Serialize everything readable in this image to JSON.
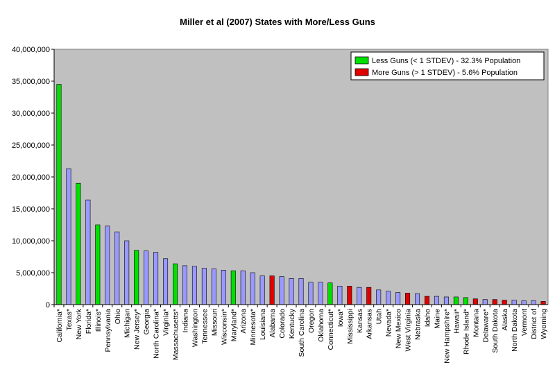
{
  "chart_data": {
    "type": "bar",
    "title": "Miller et al (2007) States with More/Less Guns",
    "xlabel": "",
    "ylabel": "",
    "ylim": [
      0,
      40000000
    ],
    "yticks": [
      0,
      5000000,
      10000000,
      15000000,
      20000000,
      25000000,
      30000000,
      35000000,
      40000000
    ],
    "ytick_labels": [
      "0",
      "5,000,000",
      "10,000,000",
      "15,000,000",
      "20,000,000",
      "25,000,000",
      "30,000,000",
      "35,000,000",
      "40,000,000"
    ],
    "grid": false,
    "legend_position": "top-right",
    "plot_background": "#c0c0c0",
    "colors": {
      "less": "#00e000",
      "more": "#e00000",
      "neutral": "#9999ff"
    },
    "legend": [
      {
        "group": "less",
        "label": "Less Guns (< 1 STDEV) - 32.3% Population"
      },
      {
        "group": "more",
        "label": "More Guns (> 1 STDEV) - 5.6% Population"
      }
    ],
    "categories": [
      "California*",
      "Texas*",
      "New York",
      "Florida*",
      "Illinois*",
      "Pennsylvania",
      "Ohio",
      "Michigan",
      "New Jersey*",
      "Georgia",
      "North Carolina*",
      "Virginia*",
      "Massachusetts*",
      "Indiana",
      "Washington",
      "Tennessee",
      "Missouri",
      "Wisconsin*",
      "Maryland*",
      "Arizona",
      "Minnesota*",
      "Louisiana",
      "Alabama",
      "Colorado",
      "Kentucky",
      "South Carolina",
      "Oregon",
      "Oklahoma",
      "Connecticut*",
      "Iowa*",
      "Mississippi",
      "Kansas",
      "Arkansas",
      "Utah",
      "Nevada*",
      "New Mexico",
      "West Virginia",
      "Nebraska",
      "Idaho",
      "Maine",
      "New Hampshire*",
      "Hawaii*",
      "Rhode Island*",
      "Montana",
      "Delaware*",
      "South Dakota",
      "Alaska",
      "North Dakota",
      "Vermont",
      "District of",
      "Wyoming"
    ],
    "values": [
      34500000,
      21300000,
      19000000,
      16400000,
      12500000,
      12300000,
      11400000,
      10000000,
      8500000,
      8400000,
      8200000,
      7200000,
      6400000,
      6100000,
      6000000,
      5700000,
      5600000,
      5400000,
      5300000,
      5300000,
      5000000,
      4500000,
      4500000,
      4400000,
      4100000,
      4100000,
      3500000,
      3500000,
      3400000,
      2900000,
      2900000,
      2700000,
      2700000,
      2300000,
      2100000,
      1900000,
      1800000,
      1700000,
      1300000,
      1300000,
      1200000,
      1200000,
      1100000,
      900000,
      800000,
      800000,
      700000,
      700000,
      600000,
      600000,
      500000
    ],
    "groups": [
      "less",
      "neutral",
      "less",
      "neutral",
      "less",
      "neutral",
      "neutral",
      "neutral",
      "less",
      "neutral",
      "neutral",
      "neutral",
      "less",
      "neutral",
      "neutral",
      "neutral",
      "neutral",
      "neutral",
      "less",
      "neutral",
      "neutral",
      "neutral",
      "more",
      "neutral",
      "neutral",
      "neutral",
      "neutral",
      "neutral",
      "less",
      "neutral",
      "more",
      "neutral",
      "more",
      "neutral",
      "neutral",
      "neutral",
      "more",
      "neutral",
      "more",
      "neutral",
      "neutral",
      "less",
      "less",
      "more",
      "neutral",
      "more",
      "more",
      "neutral",
      "neutral",
      "neutral",
      "more"
    ]
  }
}
